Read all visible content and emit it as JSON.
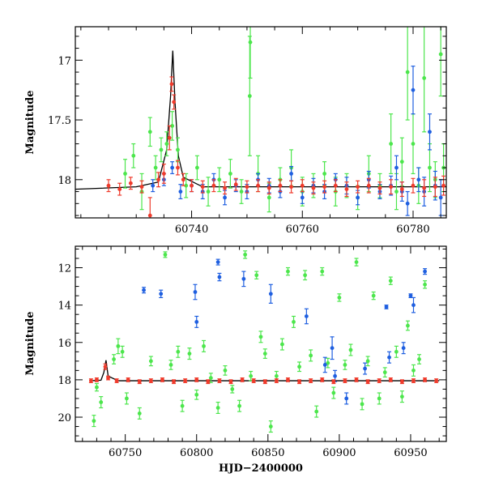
{
  "colors": {
    "blue": "#1f5fe0",
    "green": "#4ce64c",
    "red": "#ef3b2c",
    "model": "#000000",
    "axis": "#000000"
  },
  "chart_data": [
    {
      "type": "scatter",
      "panel": "top",
      "title": "",
      "xlabel": "",
      "ylabel": "Magnitude",
      "xlim": [
        60719,
        60786
      ],
      "ylim": [
        18.32,
        16.72
      ],
      "y_inverted": true,
      "xticks": [
        60740,
        60760,
        60780
      ],
      "xtick_labels": [
        "60740",
        "60760",
        "60780"
      ],
      "yticks": [
        17,
        17.5,
        18
      ],
      "ytick_labels": [
        "17",
        "17.5",
        "18"
      ],
      "model_curve": {
        "name": "model",
        "color": "#000000",
        "x": [
          60719,
          60730,
          60734,
          60735.5,
          60736.2,
          60736.6,
          60737.0,
          60737.6,
          60738.5,
          60742,
          60760,
          60786
        ],
        "y": [
          18.08,
          18.06,
          18.02,
          17.75,
          17.3,
          16.92,
          17.35,
          17.8,
          17.98,
          18.06,
          18.06,
          18.06
        ]
      },
      "series": [
        {
          "name": "green",
          "color": "#4ce64c",
          "x": [
            60728,
            60729.5,
            60731,
            60732.5,
            60733.5,
            60734.5,
            60735.5,
            60736.5,
            60737.5,
            60739,
            60741,
            60743,
            60745,
            60747,
            60749,
            60750.5,
            60750.6,
            60752,
            60754,
            60756,
            60758,
            60760,
            60762,
            60764,
            60766,
            60768,
            60770,
            60772,
            60774,
            60776,
            60777,
            60778,
            60779,
            60780,
            60781,
            60782,
            60783,
            60784,
            60785,
            60785.5
          ],
          "y": [
            17.95,
            17.8,
            18.1,
            17.6,
            17.9,
            17.75,
            17.7,
            17.55,
            17.75,
            18.05,
            17.9,
            18.1,
            18.0,
            17.95,
            18.1,
            17.3,
            16.85,
            17.95,
            18.15,
            18.0,
            17.9,
            18.1,
            18.05,
            17.95,
            18.1,
            18.05,
            18.15,
            17.95,
            18.05,
            17.7,
            18.1,
            17.85,
            17.1,
            17.7,
            18.05,
            17.15,
            17.9,
            18.0,
            16.95,
            17.9
          ],
          "err": [
            0.12,
            0.1,
            0.15,
            0.12,
            0.1,
            0.1,
            0.1,
            0.12,
            0.1,
            0.1,
            0.1,
            0.12,
            0.1,
            0.12,
            0.1,
            0.5,
            0.3,
            0.15,
            0.12,
            0.1,
            0.15,
            0.12,
            0.1,
            0.1,
            0.12,
            0.1,
            0.1,
            0.15,
            0.1,
            0.25,
            0.15,
            0.2,
            0.4,
            0.25,
            0.15,
            0.45,
            0.2,
            0.15,
            0.35,
            0.2
          ]
        },
        {
          "name": "blue",
          "color": "#1f5fe0",
          "x": [
            60733,
            60735,
            60736.5,
            60738,
            60740,
            60742,
            60744,
            60746,
            60748,
            60750,
            60752,
            60754,
            60756,
            60758,
            60760,
            60762,
            60764,
            60766,
            60768,
            60770,
            60772,
            60774,
            60776,
            60777,
            60778,
            60779,
            60780,
            60781,
            60782,
            60783,
            60784,
            60785
          ],
          "y": [
            18.05,
            18.0,
            17.9,
            18.1,
            18.05,
            18.1,
            18.0,
            18.15,
            18.05,
            18.1,
            18.0,
            18.05,
            18.1,
            17.95,
            18.15,
            18.05,
            18.1,
            18.0,
            18.05,
            18.15,
            18.0,
            18.1,
            18.05,
            17.9,
            18.1,
            18.2,
            17.25,
            18.0,
            18.1,
            17.6,
            18.05,
            18.15
          ],
          "err": [
            0.05,
            0.05,
            0.05,
            0.06,
            0.05,
            0.06,
            0.05,
            0.06,
            0.05,
            0.06,
            0.05,
            0.06,
            0.05,
            0.06,
            0.05,
            0.06,
            0.06,
            0.05,
            0.07,
            0.06,
            0.07,
            0.06,
            0.08,
            0.1,
            0.08,
            0.1,
            0.2,
            0.1,
            0.12,
            0.15,
            0.12,
            0.15
          ]
        },
        {
          "name": "red",
          "color": "#ef3b2c",
          "x": [
            60725,
            60727,
            60729,
            60731,
            60732.5,
            60734,
            60735,
            60736,
            60736.4,
            60736.8,
            60737.5,
            60738.5,
            60740,
            60742,
            60744,
            60746,
            60748,
            60750,
            60752,
            60754,
            60756,
            60758,
            60760,
            60762,
            60764,
            60766,
            60768,
            60770,
            60772,
            60774,
            60776,
            60778,
            60780,
            60782,
            60784,
            60785.5
          ],
          "y": [
            18.05,
            18.08,
            18.03,
            18.06,
            18.3,
            18.0,
            17.95,
            17.65,
            17.2,
            17.35,
            17.9,
            18.0,
            18.05,
            18.06,
            18.05,
            18.07,
            18.04,
            18.06,
            18.05,
            18.07,
            18.05,
            18.06,
            18.05,
            18.07,
            18.06,
            18.05,
            18.08,
            18.06,
            18.05,
            18.07,
            18.06,
            18.08,
            18.05,
            18.07,
            18.06,
            18.05
          ],
          "err": [
            0.05,
            0.05,
            0.05,
            0.05,
            0.15,
            0.06,
            0.08,
            0.1,
            0.06,
            0.06,
            0.06,
            0.05,
            0.05,
            0.05,
            0.05,
            0.05,
            0.05,
            0.05,
            0.05,
            0.05,
            0.05,
            0.05,
            0.05,
            0.05,
            0.05,
            0.05,
            0.06,
            0.05,
            0.06,
            0.05,
            0.06,
            0.06,
            0.06,
            0.07,
            0.08,
            0.08
          ]
        }
      ]
    },
    {
      "type": "scatter",
      "panel": "bottom",
      "title": "",
      "xlabel": "HJD−2400000",
      "ylabel": "Magnitude",
      "xlim": [
        60715,
        60975
      ],
      "ylim": [
        21.3,
        10.85
      ],
      "y_inverted": true,
      "xticks": [
        60750,
        60800,
        60850,
        60900,
        60950
      ],
      "xtick_labels": [
        "60750",
        "60800",
        "60850",
        "60900",
        "60950"
      ],
      "yticks": [
        12,
        14,
        16,
        18,
        20
      ],
      "ytick_labels": [
        "12",
        "14",
        "16",
        "18",
        "20"
      ],
      "model_curve": {
        "name": "model",
        "color": "#000000",
        "x": [
          60725,
          60733,
          60735,
          60736.5,
          60738,
          60745,
          60970
        ],
        "y": [
          18.05,
          18.02,
          17.6,
          16.95,
          17.8,
          18.05,
          18.05
        ]
      },
      "series": [
        {
          "name": "green",
          "color": "#4ce64c",
          "x": [
            60728,
            60730,
            60733,
            60742,
            60745,
            60748,
            60751,
            60760,
            60768,
            60778,
            60782,
            60787,
            60790,
            60795,
            60800,
            60805,
            60810,
            60815,
            60820,
            60825,
            60830,
            60834,
            60838,
            60842,
            60845,
            60848,
            60852,
            60856,
            60860,
            60864,
            60868,
            60872,
            60876,
            60880,
            60884,
            60888,
            60892,
            60896,
            60900,
            60904,
            60908,
            60912,
            60916,
            60920,
            60924,
            60928,
            60932,
            60936,
            60940,
            60944,
            60948,
            60952,
            60956,
            60960
          ],
          "y": [
            20.2,
            18.4,
            19.2,
            16.9,
            16.2,
            16.5,
            19.0,
            19.8,
            17.0,
            11.3,
            17.2,
            16.5,
            19.4,
            16.6,
            18.8,
            16.2,
            17.9,
            19.5,
            17.5,
            18.5,
            19.4,
            11.3,
            17.8,
            12.4,
            15.7,
            16.6,
            20.5,
            17.8,
            16.1,
            12.2,
            14.9,
            17.3,
            12.4,
            16.7,
            19.7,
            12.2,
            17.1,
            18.7,
            13.6,
            17.2,
            16.4,
            11.7,
            19.3,
            17.0,
            13.5,
            19.0,
            17.6,
            12.7,
            16.5,
            18.9,
            15.1,
            17.5,
            16.9,
            12.9
          ],
          "err": [
            0.3,
            0.2,
            0.3,
            0.25,
            0.4,
            0.3,
            0.3,
            0.3,
            0.25,
            0.15,
            0.25,
            0.3,
            0.3,
            0.3,
            0.25,
            0.3,
            0.25,
            0.3,
            0.25,
            0.2,
            0.3,
            0.2,
            0.25,
            0.2,
            0.3,
            0.25,
            0.3,
            0.25,
            0.3,
            0.2,
            0.3,
            0.25,
            0.25,
            0.3,
            0.3,
            0.2,
            0.25,
            0.3,
            0.2,
            0.25,
            0.3,
            0.2,
            0.3,
            0.25,
            0.2,
            0.3,
            0.25,
            0.2,
            0.3,
            0.3,
            0.25,
            0.3,
            0.25,
            0.2
          ]
        },
        {
          "name": "blue",
          "color": "#1f5fe0",
          "x": [
            60763,
            60775,
            60799,
            60800,
            60815,
            60816,
            60833,
            60852,
            60877,
            60890,
            60895,
            60897,
            60905,
            60918,
            60933,
            60935,
            60945,
            60950,
            60952,
            60960
          ],
          "y": [
            13.2,
            13.4,
            13.3,
            14.9,
            11.7,
            12.5,
            12.6,
            13.4,
            14.6,
            17.2,
            16.3,
            17.8,
            19.0,
            17.4,
            14.1,
            16.8,
            16.3,
            13.5,
            14.0,
            12.2
          ],
          "err": [
            0.15,
            0.2,
            0.4,
            0.3,
            0.15,
            0.2,
            0.4,
            0.5,
            0.4,
            0.4,
            0.6,
            0.3,
            0.3,
            0.3,
            0.1,
            0.3,
            0.3,
            0.1,
            0.4,
            0.15
          ]
        },
        {
          "name": "red",
          "color": "#ef3b2c",
          "x": [
            60726,
            60730,
            60736,
            60738,
            60744,
            60752,
            60760,
            60768,
            60776,
            60784,
            60792,
            60800,
            60808,
            60816,
            60824,
            60832,
            60840,
            60848,
            60856,
            60864,
            60872,
            60880,
            60888,
            60896,
            60904,
            60912,
            60920,
            60928,
            60936,
            60944,
            60952,
            60960,
            60968
          ],
          "y": [
            18.05,
            18.0,
            17.3,
            17.9,
            18.05,
            18.0,
            18.1,
            18.05,
            18.0,
            18.1,
            18.05,
            18.0,
            18.1,
            18.05,
            18.1,
            18.0,
            18.05,
            18.1,
            18.05,
            18.0,
            18.1,
            18.05,
            18.0,
            18.1,
            18.05,
            18.0,
            18.1,
            18.05,
            18.0,
            18.1,
            18.05,
            18.0,
            18.05
          ],
          "err": [
            0.1,
            0.1,
            0.15,
            0.1,
            0.1,
            0.1,
            0.1,
            0.1,
            0.1,
            0.1,
            0.1,
            0.1,
            0.1,
            0.1,
            0.1,
            0.1,
            0.1,
            0.1,
            0.1,
            0.1,
            0.1,
            0.1,
            0.1,
            0.1,
            0.1,
            0.1,
            0.1,
            0.1,
            0.1,
            0.1,
            0.1,
            0.1,
            0.1
          ]
        }
      ]
    }
  ]
}
